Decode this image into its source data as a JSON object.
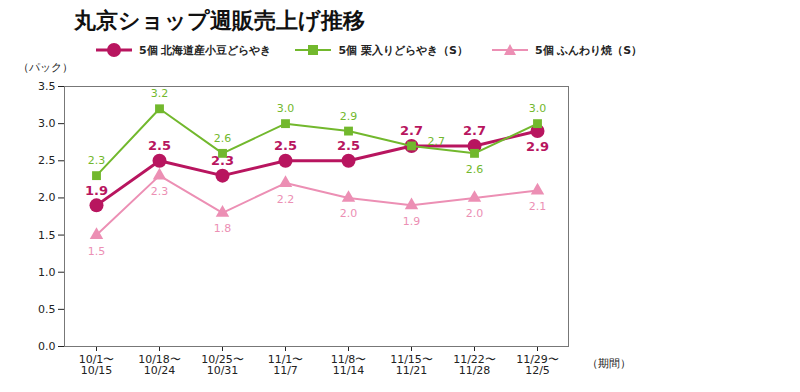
{
  "chart_data": {
    "type": "line",
    "title": "丸京ショップ週販売上げ推移",
    "y_label": "（パック）",
    "x_label": "（期間）",
    "categories": [
      "10/1〜\n10/15",
      "10/18〜\n10/24",
      "10/25〜\n10/31",
      "11/1〜\n11/7",
      "11/8〜\n11/14",
      "11/15〜\n11/21",
      "11/22〜\n11/28",
      "11/29〜\n12/5"
    ],
    "series": [
      {
        "name": "5個 北海道産小豆どらやき",
        "color": "#b8155f",
        "marker": "circle",
        "values": [
          1.9,
          2.5,
          2.3,
          2.5,
          2.5,
          2.7,
          2.7,
          2.9
        ],
        "value_labels": [
          "1.9",
          "2.5",
          "2.3",
          "2.5",
          "2.5",
          "2.7",
          "2.7",
          "2.9"
        ]
      },
      {
        "name": "5個 栗入りどらやき（S）",
        "color": "#72b82d",
        "marker": "square",
        "values": [
          2.3,
          3.2,
          2.6,
          3.0,
          2.9,
          2.7,
          2.6,
          3.0
        ],
        "value_labels": [
          "2.3",
          "3.2",
          "2.6",
          "3.0",
          "2.9",
          "2.7",
          "2.6",
          "3.0"
        ]
      },
      {
        "name": "5個 ふんわり焼（S）",
        "color": "#ec8fb4",
        "marker": "triangle",
        "values": [
          1.5,
          2.3,
          1.8,
          2.2,
          2.0,
          1.9,
          2.0,
          2.1
        ],
        "value_labels": [
          "1.5",
          "2.3",
          "1.8",
          "2.2",
          "2.0",
          "1.9",
          "2.0",
          "2.1"
        ]
      }
    ],
    "ylim": [
      0,
      3.5
    ],
    "yticks": [
      {
        "value": 0,
        "label": "0.0"
      },
      {
        "value": 0.5,
        "label": "0.5"
      },
      {
        "value": 1,
        "label": "1.0"
      },
      {
        "value": 1.5,
        "label": "1.5"
      },
      {
        "value": 2,
        "label": "2.0"
      },
      {
        "value": 2.5,
        "label": "2.5"
      },
      {
        "value": 3,
        "label": "3.0"
      },
      {
        "value": 3.5,
        "label": "3.5"
      }
    ],
    "grid": false,
    "legend": "top",
    "data_labels": true
  }
}
